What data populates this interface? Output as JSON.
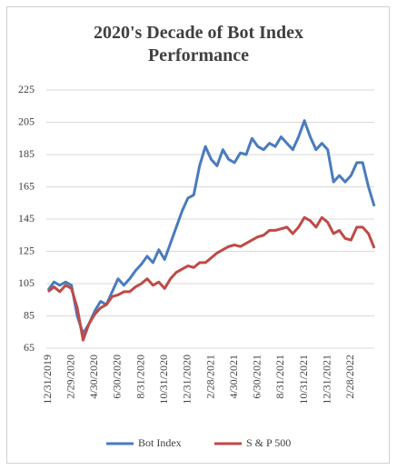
{
  "chart_data": {
    "type": "line",
    "title": "2020's Decade of Bot Index Performance",
    "categories": [
      "12/31/2019",
      null,
      null,
      null,
      "2/29/2020",
      null,
      null,
      null,
      "4/30/2020",
      null,
      null,
      null,
      "6/30/2020",
      null,
      null,
      null,
      "8/31/2020",
      null,
      null,
      null,
      "10/31/2020",
      null,
      null,
      null,
      "12/31/2020",
      null,
      null,
      null,
      "2/28/2021",
      null,
      null,
      null,
      "4/30/2021",
      null,
      null,
      null,
      "6/30/2021",
      null,
      null,
      null,
      "8/31/2021",
      null,
      null,
      null,
      "10/31/2021",
      null,
      null,
      null,
      "12/31/2021",
      null,
      null,
      null,
      "2/28/2022",
      null,
      null,
      null,
      null
    ],
    "series": [
      {
        "name": "Bot Index",
        "color": "#4a7bbf",
        "values": [
          101,
          106,
          104,
          106,
          104,
          85,
          74,
          80,
          88,
          94,
          92,
          100,
          108,
          104,
          108,
          113,
          117,
          122,
          118,
          126,
          120,
          130,
          140,
          150,
          158,
          160,
          178,
          190,
          182,
          178,
          188,
          182,
          180,
          186,
          185,
          195,
          190,
          188,
          192,
          190,
          196,
          192,
          188,
          196,
          206,
          196,
          188,
          192,
          188,
          168,
          172,
          168,
          172,
          180,
          180,
          165,
          153
        ]
      },
      {
        "name": "S & P 500",
        "color": "#bf4a47",
        "values": [
          100,
          103,
          100,
          104,
          102,
          90,
          70,
          80,
          86,
          90,
          92,
          97,
          98,
          100,
          100,
          103,
          105,
          108,
          104,
          106,
          102,
          108,
          112,
          114,
          116,
          115,
          118,
          118,
          121,
          124,
          126,
          128,
          129,
          128,
          130,
          132,
          134,
          135,
          138,
          138,
          139,
          140,
          136,
          140,
          146,
          144,
          140,
          146,
          143,
          136,
          138,
          133,
          132,
          140,
          140,
          136,
          127
        ]
      }
    ],
    "ylim": [
      65,
      225
    ],
    "yticks": [
      65,
      85,
      105,
      125,
      145,
      165,
      185,
      205,
      225
    ],
    "grid": true,
    "legend": "bottom"
  }
}
